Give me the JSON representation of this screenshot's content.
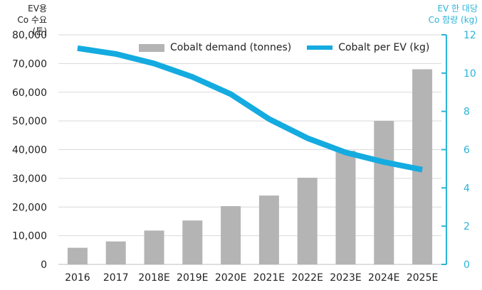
{
  "chart_data": {
    "type": "bar+line",
    "categories": [
      "2016",
      "2017",
      "2018E",
      "2019E",
      "2020E",
      "2021E",
      "2022E",
      "2023E",
      "2024E",
      "2025E"
    ],
    "series": [
      {
        "name": "Cobalt demand (tonnes)",
        "type": "bar",
        "axis": "left",
        "values": [
          5800,
          8000,
          11800,
          15300,
          20300,
          24000,
          30200,
          39600,
          50000,
          68000
        ]
      },
      {
        "name": "Cobalt per EV (kg)",
        "type": "line",
        "axis": "right",
        "values": [
          11.3,
          11.0,
          10.5,
          9.8,
          8.9,
          7.6,
          6.6,
          5.85,
          5.35,
          4.95
        ]
      }
    ],
    "left_axis": {
      "title_line1": "EV용",
      "title_line2": "Co 수요 (톤)",
      "ylim": [
        0,
        80000
      ],
      "ticks": [
        "0",
        "10,000",
        "20,000",
        "30,000",
        "40,000",
        "50,000",
        "60,000",
        "70,000",
        "80,000"
      ]
    },
    "right_axis": {
      "title_line1": "EV 한 대당",
      "title_line2": "Co 함량 (kg)",
      "ylim": [
        0,
        12
      ],
      "ticks": [
        "0",
        "2",
        "4",
        "6",
        "8",
        "10",
        "12"
      ]
    },
    "colors": {
      "bar": "#b4b4b4",
      "line": "#14abe0",
      "right_axis": "#2bb4d8",
      "grid": "#d9d9d9"
    },
    "legend_position": "top-center"
  }
}
